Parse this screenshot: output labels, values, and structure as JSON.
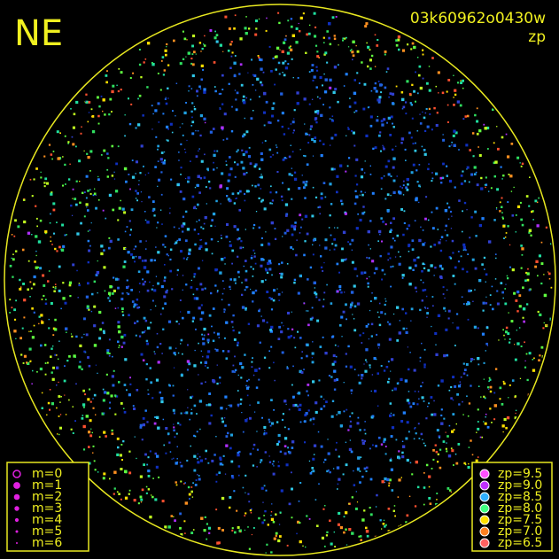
{
  "header": {
    "direction": "NE",
    "image_id": "03k60962o0430w",
    "mode": "zp"
  },
  "magnitude_legend": {
    "items": [
      "m=0",
      "m=1",
      "m=2",
      "m=3",
      "m=4",
      "m=5",
      "m=6"
    ]
  },
  "zp_legend": {
    "items": [
      {
        "label": "zp=9.5",
        "color": "#ff50ff"
      },
      {
        "label": "zp=9.0",
        "color": "#c030ff"
      },
      {
        "label": "zp=8.5",
        "color": "#30b0ff"
      },
      {
        "label": "zp=8.0",
        "color": "#40ff80"
      },
      {
        "label": "zp=7.5",
        "color": "#ffe000"
      },
      {
        "label": "zp=7.0",
        "color": "#ff8020"
      },
      {
        "label": "zp=6.5",
        "color": "#ff6060"
      }
    ]
  }
}
